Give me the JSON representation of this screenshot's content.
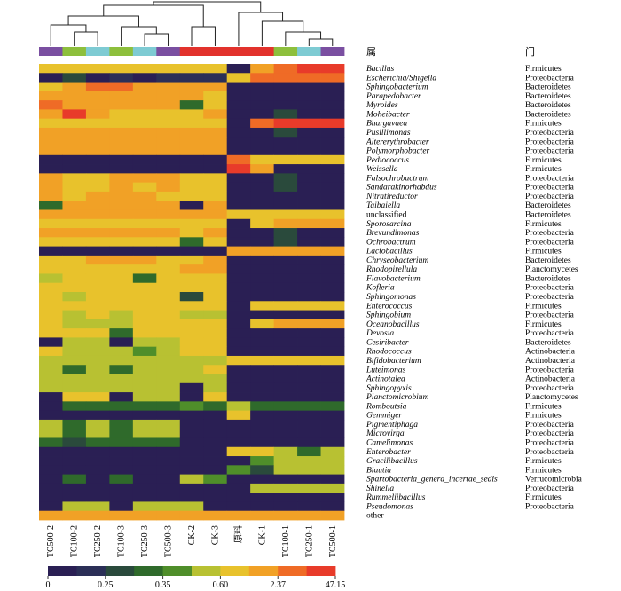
{
  "chart_data": {
    "type": "heatmap",
    "genus_header": "属",
    "phylum_header": "门",
    "columns": [
      "TC500-2",
      "TC100-2",
      "TC250-2",
      "TC100-3",
      "TC250-3",
      "TC500-3",
      "CK-2",
      "CK-3",
      "原料",
      "CK-1",
      "TC100-1",
      "TC250-1",
      "TC500-1"
    ],
    "rows": [
      "Bacillus",
      "Escherichia/Shigella",
      "Sphingobacterium",
      "Parapedobacter",
      "Myroides",
      "Moheibacter",
      "Bhargavaea",
      "Pusillimonas",
      "Altererythrobacter",
      "Polymorphobacter",
      "Pediococcus",
      "Weissella",
      "Falsochrobactrum",
      "Sandarakinorhabdus",
      "Nitratireductor",
      "Taibaiella",
      "unclassified",
      "Sporosarcina",
      "Brevundimonas",
      "Ochrobactrum",
      "Lactobacillus",
      "Chryseobacterium",
      "Rhodopirellula",
      "Flavobacterium",
      "Kofleria",
      "Sphingomonas",
      "Enterococcus",
      "Sphingobium",
      "Oceanobacillus",
      "Devosia",
      "Cesiribacter",
      "Rhodococcus",
      "Bifidobacterium",
      "Luteimonas",
      "Actinotalea",
      "Sphingopyxis",
      "Planctomicrobium",
      "Romboutsia",
      "Gemmiger",
      "Pigmentiphaga",
      "Microvirga",
      "Camelimonas",
      "Enterobacter",
      "Gracilibacillus",
      "Blautia",
      "Spartobacteria_genera_incertae_sedis",
      "Shinella",
      "Rummeliibacillus",
      "Pseudomonas",
      "other"
    ],
    "phyla": [
      "Firmicutes",
      "Proteobacteria",
      "Bacteroidetes",
      "Bacteroidetes",
      "Bacteroidetes",
      "Bacteroidetes",
      "Firmicutes",
      "Proteobacteria",
      "Proteobacteria",
      "Proteobacteria",
      "Firmicutes",
      "Firmicutes",
      "Proteobacteria",
      "Proteobacteria",
      "Proteobacteria",
      "Bacteroidetes",
      "Bacteroidetes",
      "Firmicutes",
      "Proteobacteria",
      "Proteobacteria",
      "Firmicutes",
      "Bacteroidetes",
      "Planctomycetes",
      "Bacteroidetes",
      "Proteobacteria",
      "Proteobacteria",
      "Firmicutes",
      "Proteobacteria",
      "Firmicutes",
      "Proteobacteria",
      "Bacteroidetes",
      "Actinobacteria",
      "Actinobacteria",
      "Proteobacteria",
      "Actinobacteria",
      "Proteobacteria",
      "Planctomycetes",
      "Firmicutes",
      "Firmicutes",
      "Proteobacteria",
      "Proteobacteria",
      "Proteobacteria",
      "Proteobacteria",
      "Firmicutes",
      "Firmicutes",
      "Verrucomicrobia",
      "Proteobacteria",
      "Firmicutes",
      "Proteobacteria",
      ""
    ],
    "values": [
      [
        6,
        6,
        6,
        6,
        6,
        6,
        6,
        6,
        0,
        7,
        8,
        9,
        9
      ],
      [
        0,
        2,
        0,
        1,
        0,
        1,
        1,
        1,
        6,
        8,
        8,
        8,
        8
      ],
      [
        6,
        7,
        8,
        8,
        7,
        7,
        7,
        7,
        0,
        0,
        0,
        0,
        0
      ],
      [
        7,
        7,
        7,
        7,
        7,
        7,
        7,
        6,
        0,
        0,
        0,
        0,
        0
      ],
      [
        8,
        7,
        7,
        7,
        7,
        7,
        3,
        6,
        0,
        0,
        0,
        0,
        0
      ],
      [
        7,
        9,
        7,
        6,
        6,
        6,
        6,
        7,
        0,
        0,
        2,
        0,
        0
      ],
      [
        6,
        6,
        6,
        6,
        6,
        6,
        6,
        6,
        0,
        8,
        9,
        9,
        9
      ],
      [
        7,
        7,
        7,
        7,
        7,
        7,
        7,
        7,
        0,
        0,
        2,
        0,
        0
      ],
      [
        7,
        7,
        7,
        7,
        7,
        7,
        7,
        7,
        0,
        0,
        0,
        0,
        0
      ],
      [
        7,
        7,
        7,
        7,
        7,
        7,
        7,
        7,
        0,
        0,
        0,
        0,
        0
      ],
      [
        0,
        0,
        0,
        0,
        0,
        0,
        0,
        0,
        8,
        6,
        6,
        6,
        6
      ],
      [
        0,
        0,
        0,
        0,
        0,
        0,
        0,
        0,
        9,
        7,
        0,
        0,
        0
      ],
      [
        7,
        6,
        6,
        7,
        7,
        7,
        6,
        6,
        0,
        0,
        2,
        0,
        0
      ],
      [
        7,
        6,
        6,
        7,
        6,
        7,
        6,
        6,
        0,
        0,
        2,
        0,
        0
      ],
      [
        7,
        6,
        7,
        7,
        7,
        6,
        6,
        6,
        0,
        0,
        0,
        0,
        0
      ],
      [
        3,
        7,
        7,
        7,
        7,
        7,
        0,
        7,
        0,
        0,
        0,
        0,
        0
      ],
      [
        7,
        7,
        7,
        7,
        7,
        7,
        7,
        7,
        6,
        6,
        6,
        6,
        6
      ],
      [
        6,
        6,
        6,
        6,
        6,
        6,
        6,
        6,
        0,
        6,
        7,
        7,
        7
      ],
      [
        7,
        7,
        7,
        7,
        7,
        7,
        6,
        7,
        0,
        0,
        2,
        0,
        0
      ],
      [
        6,
        6,
        6,
        6,
        6,
        6,
        3,
        6,
        0,
        0,
        2,
        0,
        0
      ],
      [
        0,
        0,
        0,
        0,
        0,
        0,
        0,
        0,
        7,
        7,
        7,
        7,
        7
      ],
      [
        6,
        6,
        7,
        7,
        7,
        6,
        6,
        7,
        0,
        0,
        0,
        0,
        0
      ],
      [
        6,
        6,
        6,
        6,
        6,
        6,
        7,
        7,
        0,
        0,
        0,
        0,
        0
      ],
      [
        5,
        6,
        6,
        6,
        3,
        6,
        6,
        6,
        0,
        0,
        0,
        0,
        0
      ],
      [
        6,
        6,
        6,
        6,
        6,
        6,
        6,
        6,
        0,
        0,
        0,
        0,
        0
      ],
      [
        6,
        5,
        6,
        6,
        6,
        6,
        2,
        6,
        0,
        0,
        0,
        0,
        0
      ],
      [
        6,
        6,
        6,
        6,
        6,
        6,
        6,
        6,
        0,
        6,
        6,
        6,
        6
      ],
      [
        6,
        5,
        6,
        5,
        6,
        6,
        5,
        5,
        0,
        0,
        0,
        0,
        0
      ],
      [
        6,
        5,
        5,
        5,
        6,
        6,
        6,
        6,
        0,
        6,
        7,
        7,
        7
      ],
      [
        6,
        6,
        6,
        3,
        6,
        6,
        6,
        6,
        0,
        0,
        0,
        0,
        0
      ],
      [
        0,
        5,
        5,
        0,
        5,
        5,
        6,
        6,
        0,
        0,
        0,
        0,
        0
      ],
      [
        6,
        5,
        5,
        5,
        4,
        5,
        6,
        6,
        0,
        0,
        0,
        0,
        0
      ],
      [
        5,
        5,
        5,
        5,
        5,
        5,
        5,
        5,
        6,
        6,
        6,
        6,
        6
      ],
      [
        5,
        3,
        5,
        3,
        5,
        5,
        5,
        6,
        0,
        0,
        0,
        0,
        0
      ],
      [
        5,
        5,
        5,
        5,
        5,
        5,
        5,
        5,
        0,
        0,
        0,
        0,
        0
      ],
      [
        5,
        5,
        5,
        5,
        5,
        5,
        0,
        5,
        0,
        0,
        0,
        0,
        0
      ],
      [
        0,
        6,
        6,
        0,
        5,
        5,
        0,
        6,
        0,
        0,
        0,
        0,
        0
      ],
      [
        0,
        3,
        3,
        3,
        3,
        3,
        4,
        3,
        5,
        3,
        3,
        3,
        3
      ],
      [
        0,
        0,
        0,
        0,
        0,
        0,
        0,
        0,
        6,
        0,
        0,
        0,
        0
      ],
      [
        5,
        3,
        5,
        3,
        5,
        5,
        0,
        0,
        0,
        0,
        0,
        0,
        0
      ],
      [
        5,
        3,
        5,
        3,
        5,
        5,
        0,
        0,
        0,
        0,
        0,
        0,
        0
      ],
      [
        3,
        2,
        3,
        3,
        3,
        3,
        0,
        0,
        0,
        0,
        0,
        0,
        0
      ],
      [
        0,
        0,
        0,
        0,
        0,
        0,
        0,
        0,
        6,
        6,
        5,
        3,
        5
      ],
      [
        0,
        0,
        0,
        0,
        0,
        0,
        0,
        0,
        0,
        4,
        5,
        5,
        5
      ],
      [
        0,
        0,
        0,
        0,
        0,
        0,
        0,
        0,
        4,
        2,
        5,
        5,
        5
      ],
      [
        0,
        3,
        0,
        3,
        0,
        0,
        5,
        4,
        0,
        0,
        0,
        0,
        0
      ],
      [
        0,
        0,
        0,
        0,
        0,
        0,
        0,
        0,
        0,
        5,
        5,
        5,
        5
      ],
      [
        0,
        0,
        0,
        0,
        0,
        0,
        0,
        0,
        0,
        0,
        0,
        0,
        0
      ],
      [
        0,
        5,
        5,
        0,
        5,
        5,
        5,
        0,
        0,
        0,
        0,
        0,
        0
      ],
      [
        7,
        7,
        7,
        7,
        7,
        7,
        7,
        7,
        7,
        7,
        7,
        7,
        7
      ]
    ],
    "value_note": "values are colour-bin indices 0-9 matching colors[]",
    "colors": [
      "#2a1f54",
      "#2b2f57",
      "#2a4a3c",
      "#2f6a2b",
      "#4f8e2a",
      "#b8c132",
      "#e8c22c",
      "#f1a126",
      "#ef6b26",
      "#e83b2a"
    ],
    "legend_ticks": [
      "0",
      "0.25",
      "0.35",
      "0.60",
      "2.37",
      "47.15"
    ],
    "group_colors": [
      "#7a4fa1",
      "#8dbf3c",
      "#7ecbd3",
      "#8dbf3c",
      "#7ecbd3",
      "#7a4fa1",
      "#e2322c",
      "#e2322c",
      "#e2322c",
      "#e2322c",
      "#8dbf3c",
      "#7ecbd3",
      "#7a4fa1"
    ]
  }
}
